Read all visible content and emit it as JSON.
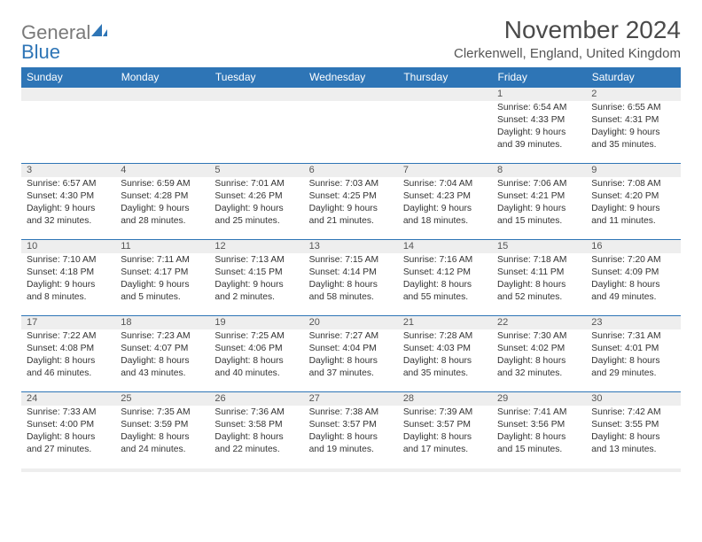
{
  "logo": {
    "textGray": "General",
    "textBlue": "Blue"
  },
  "title": "November 2024",
  "location": "Clerkenwell, England, United Kingdom",
  "colors": {
    "headerBg": "#2e75b6",
    "headerText": "#ffffff",
    "dayNumBg": "#eeeeee",
    "border": "#2e75b6",
    "bodyText": "#333333"
  },
  "weekdays": [
    "Sunday",
    "Monday",
    "Tuesday",
    "Wednesday",
    "Thursday",
    "Friday",
    "Saturday"
  ],
  "weeks": [
    [
      null,
      null,
      null,
      null,
      null,
      {
        "n": "1",
        "sr": "Sunrise: 6:54 AM",
        "ss": "Sunset: 4:33 PM",
        "d1": "Daylight: 9 hours",
        "d2": "and 39 minutes."
      },
      {
        "n": "2",
        "sr": "Sunrise: 6:55 AM",
        "ss": "Sunset: 4:31 PM",
        "d1": "Daylight: 9 hours",
        "d2": "and 35 minutes."
      }
    ],
    [
      {
        "n": "3",
        "sr": "Sunrise: 6:57 AM",
        "ss": "Sunset: 4:30 PM",
        "d1": "Daylight: 9 hours",
        "d2": "and 32 minutes."
      },
      {
        "n": "4",
        "sr": "Sunrise: 6:59 AM",
        "ss": "Sunset: 4:28 PM",
        "d1": "Daylight: 9 hours",
        "d2": "and 28 minutes."
      },
      {
        "n": "5",
        "sr": "Sunrise: 7:01 AM",
        "ss": "Sunset: 4:26 PM",
        "d1": "Daylight: 9 hours",
        "d2": "and 25 minutes."
      },
      {
        "n": "6",
        "sr": "Sunrise: 7:03 AM",
        "ss": "Sunset: 4:25 PM",
        "d1": "Daylight: 9 hours",
        "d2": "and 21 minutes."
      },
      {
        "n": "7",
        "sr": "Sunrise: 7:04 AM",
        "ss": "Sunset: 4:23 PM",
        "d1": "Daylight: 9 hours",
        "d2": "and 18 minutes."
      },
      {
        "n": "8",
        "sr": "Sunrise: 7:06 AM",
        "ss": "Sunset: 4:21 PM",
        "d1": "Daylight: 9 hours",
        "d2": "and 15 minutes."
      },
      {
        "n": "9",
        "sr": "Sunrise: 7:08 AM",
        "ss": "Sunset: 4:20 PM",
        "d1": "Daylight: 9 hours",
        "d2": "and 11 minutes."
      }
    ],
    [
      {
        "n": "10",
        "sr": "Sunrise: 7:10 AM",
        "ss": "Sunset: 4:18 PM",
        "d1": "Daylight: 9 hours",
        "d2": "and 8 minutes."
      },
      {
        "n": "11",
        "sr": "Sunrise: 7:11 AM",
        "ss": "Sunset: 4:17 PM",
        "d1": "Daylight: 9 hours",
        "d2": "and 5 minutes."
      },
      {
        "n": "12",
        "sr": "Sunrise: 7:13 AM",
        "ss": "Sunset: 4:15 PM",
        "d1": "Daylight: 9 hours",
        "d2": "and 2 minutes."
      },
      {
        "n": "13",
        "sr": "Sunrise: 7:15 AM",
        "ss": "Sunset: 4:14 PM",
        "d1": "Daylight: 8 hours",
        "d2": "and 58 minutes."
      },
      {
        "n": "14",
        "sr": "Sunrise: 7:16 AM",
        "ss": "Sunset: 4:12 PM",
        "d1": "Daylight: 8 hours",
        "d2": "and 55 minutes."
      },
      {
        "n": "15",
        "sr": "Sunrise: 7:18 AM",
        "ss": "Sunset: 4:11 PM",
        "d1": "Daylight: 8 hours",
        "d2": "and 52 minutes."
      },
      {
        "n": "16",
        "sr": "Sunrise: 7:20 AM",
        "ss": "Sunset: 4:09 PM",
        "d1": "Daylight: 8 hours",
        "d2": "and 49 minutes."
      }
    ],
    [
      {
        "n": "17",
        "sr": "Sunrise: 7:22 AM",
        "ss": "Sunset: 4:08 PM",
        "d1": "Daylight: 8 hours",
        "d2": "and 46 minutes."
      },
      {
        "n": "18",
        "sr": "Sunrise: 7:23 AM",
        "ss": "Sunset: 4:07 PM",
        "d1": "Daylight: 8 hours",
        "d2": "and 43 minutes."
      },
      {
        "n": "19",
        "sr": "Sunrise: 7:25 AM",
        "ss": "Sunset: 4:06 PM",
        "d1": "Daylight: 8 hours",
        "d2": "and 40 minutes."
      },
      {
        "n": "20",
        "sr": "Sunrise: 7:27 AM",
        "ss": "Sunset: 4:04 PM",
        "d1": "Daylight: 8 hours",
        "d2": "and 37 minutes."
      },
      {
        "n": "21",
        "sr": "Sunrise: 7:28 AM",
        "ss": "Sunset: 4:03 PM",
        "d1": "Daylight: 8 hours",
        "d2": "and 35 minutes."
      },
      {
        "n": "22",
        "sr": "Sunrise: 7:30 AM",
        "ss": "Sunset: 4:02 PM",
        "d1": "Daylight: 8 hours",
        "d2": "and 32 minutes."
      },
      {
        "n": "23",
        "sr": "Sunrise: 7:31 AM",
        "ss": "Sunset: 4:01 PM",
        "d1": "Daylight: 8 hours",
        "d2": "and 29 minutes."
      }
    ],
    [
      {
        "n": "24",
        "sr": "Sunrise: 7:33 AM",
        "ss": "Sunset: 4:00 PM",
        "d1": "Daylight: 8 hours",
        "d2": "and 27 minutes."
      },
      {
        "n": "25",
        "sr": "Sunrise: 7:35 AM",
        "ss": "Sunset: 3:59 PM",
        "d1": "Daylight: 8 hours",
        "d2": "and 24 minutes."
      },
      {
        "n": "26",
        "sr": "Sunrise: 7:36 AM",
        "ss": "Sunset: 3:58 PM",
        "d1": "Daylight: 8 hours",
        "d2": "and 22 minutes."
      },
      {
        "n": "27",
        "sr": "Sunrise: 7:38 AM",
        "ss": "Sunset: 3:57 PM",
        "d1": "Daylight: 8 hours",
        "d2": "and 19 minutes."
      },
      {
        "n": "28",
        "sr": "Sunrise: 7:39 AM",
        "ss": "Sunset: 3:57 PM",
        "d1": "Daylight: 8 hours",
        "d2": "and 17 minutes."
      },
      {
        "n": "29",
        "sr": "Sunrise: 7:41 AM",
        "ss": "Sunset: 3:56 PM",
        "d1": "Daylight: 8 hours",
        "d2": "and 15 minutes."
      },
      {
        "n": "30",
        "sr": "Sunrise: 7:42 AM",
        "ss": "Sunset: 3:55 PM",
        "d1": "Daylight: 8 hours",
        "d2": "and 13 minutes."
      }
    ]
  ]
}
